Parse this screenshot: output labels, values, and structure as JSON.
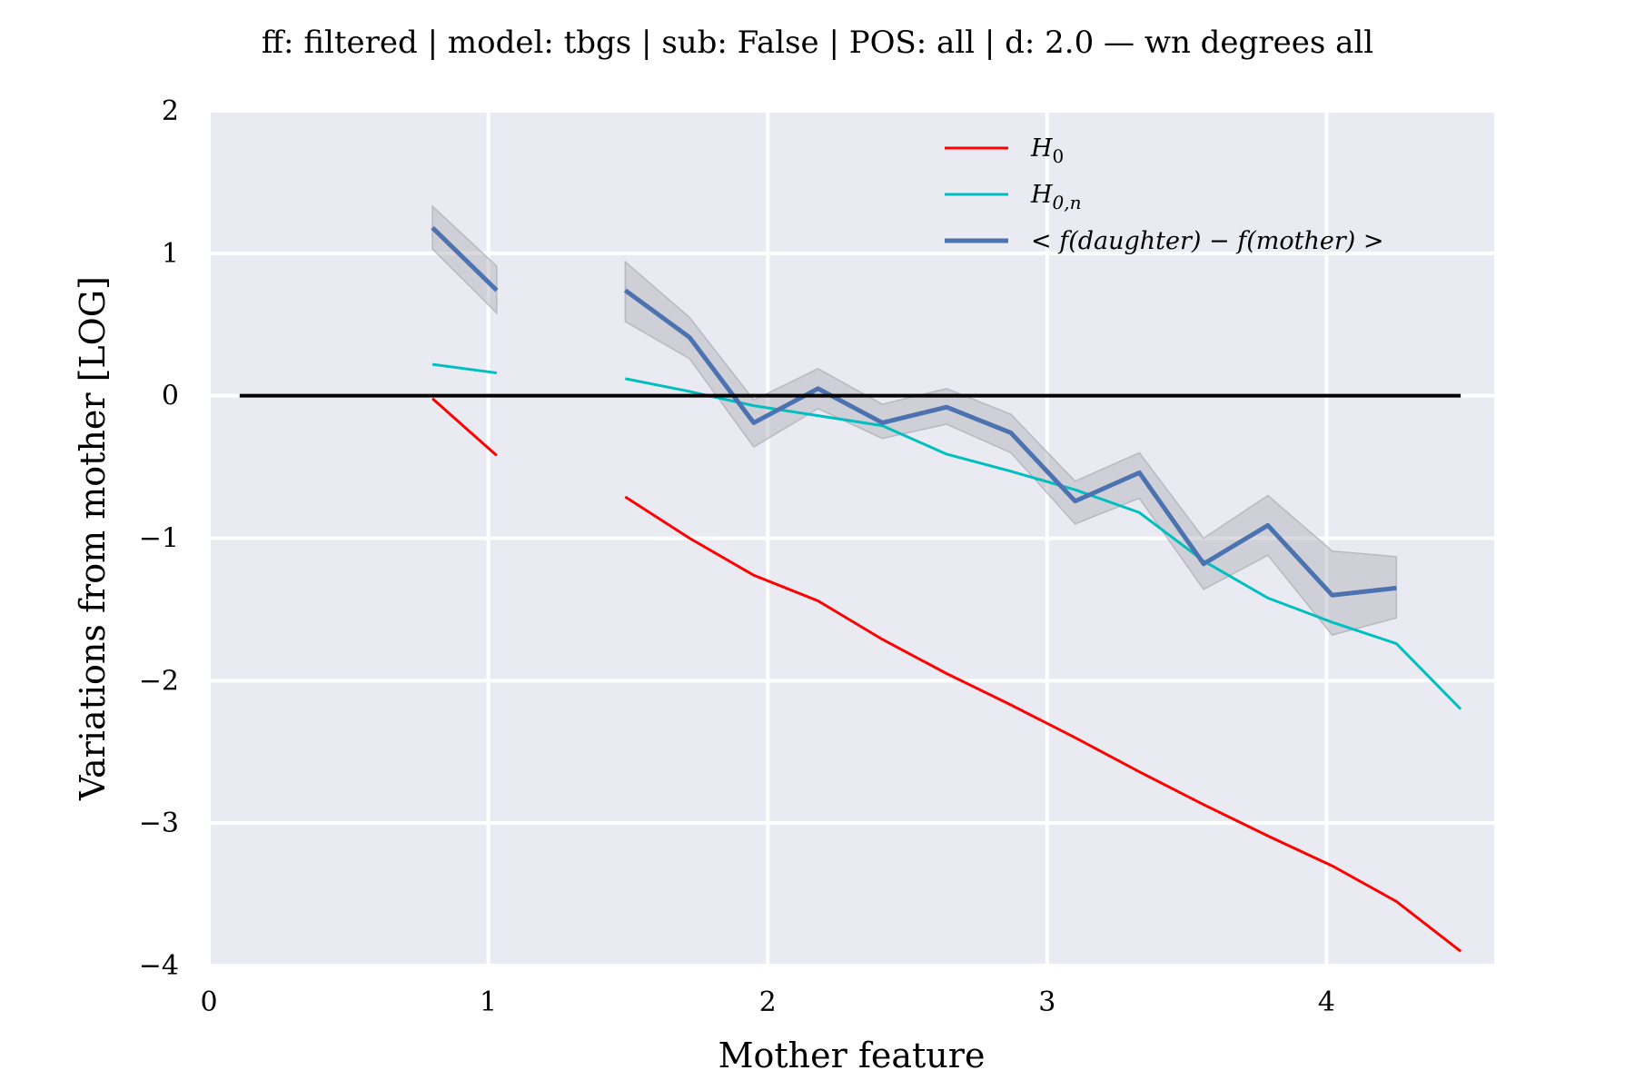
{
  "chart_data": {
    "type": "line",
    "title": "ff: filtered | model: tbgs | sub: False | POS: all | d: 2.0 — wn degrees all",
    "xlabel": "Mother feature",
    "ylabel": "Variations from mother [LOG]",
    "xlim": [
      0,
      4.6
    ],
    "ylim": [
      -4,
      2
    ],
    "xticks": [
      0,
      1,
      2,
      3,
      4
    ],
    "yticks": [
      -4,
      -3,
      -2,
      -1,
      0,
      1,
      2
    ],
    "xtick_labels": [
      "0",
      "1",
      "2",
      "3",
      "4"
    ],
    "ytick_labels": [
      "−4",
      "−3",
      "−2",
      "−1",
      "0",
      "1",
      "2"
    ],
    "grid": true,
    "legend_position": "top-right",
    "background": "#eaeaf2",
    "reference_line": {
      "y": 0,
      "x_from": 0.11,
      "x_to": 4.48,
      "color": "#000000"
    },
    "series": [
      {
        "name": "H_0",
        "legend_label": "H0",
        "color": "#ff0000",
        "width": 3,
        "segments": [
          {
            "x": [
              0.8,
              1.03
            ],
            "y": [
              -0.02,
              -0.42
            ]
          },
          {
            "x": [
              1.49,
              1.72,
              1.95,
              2.18,
              2.41,
              2.64,
              2.87,
              3.1,
              3.33,
              3.56,
              3.79,
              4.02,
              4.25,
              4.48
            ],
            "y": [
              -0.71,
              -1.0,
              -1.26,
              -1.44,
              -1.71,
              -1.95,
              -2.17,
              -2.4,
              -2.64,
              -2.87,
              -3.09,
              -3.3,
              -3.55,
              -3.9
            ]
          }
        ]
      },
      {
        "name": "H_{0,n}",
        "legend_label": "H0,n",
        "color": "#00bfbf",
        "width": 3,
        "segments": [
          {
            "x": [
              0.8,
              1.03
            ],
            "y": [
              0.22,
              0.16
            ]
          },
          {
            "x": [
              1.49,
              1.72,
              1.95,
              2.18,
              2.41,
              2.64,
              2.87,
              3.1,
              3.33,
              3.56,
              3.79,
              4.02,
              4.25,
              4.48
            ],
            "y": [
              0.12,
              0.03,
              -0.07,
              -0.14,
              -0.21,
              -0.41,
              -0.53,
              -0.66,
              -0.82,
              -1.16,
              -1.42,
              -1.59,
              -1.74,
              -2.2
            ]
          }
        ]
      },
      {
        "name": "< f(daughter) - f(mother) >",
        "legend_label": "< f(daughter) − f(mother) >",
        "color": "#4c72b0",
        "width": 5,
        "band_color": "#b0b0b8",
        "segments": [
          {
            "x": [
              0.8,
              1.03
            ],
            "y": [
              1.18,
              0.74
            ],
            "lower": [
              1.03,
              0.58
            ],
            "upper": [
              1.33,
              0.91
            ]
          },
          {
            "x": [
              1.49,
              1.72,
              1.95,
              2.18,
              2.41,
              2.64,
              2.87,
              3.1,
              3.33,
              3.56,
              3.79,
              4.02,
              4.25
            ],
            "y": [
              0.74,
              0.41,
              -0.19,
              0.05,
              -0.19,
              -0.08,
              -0.26,
              -0.74,
              -0.54,
              -1.18,
              -0.91,
              -1.4,
              -1.35
            ],
            "lower": [
              0.52,
              0.26,
              -0.36,
              -0.09,
              -0.3,
              -0.2,
              -0.4,
              -0.9,
              -0.72,
              -1.36,
              -1.12,
              -1.68,
              -1.56
            ],
            "upper": [
              0.94,
              0.55,
              -0.03,
              0.19,
              -0.06,
              0.05,
              -0.13,
              -0.6,
              -0.4,
              -1.0,
              -0.7,
              -1.09,
              -1.13
            ]
          }
        ]
      }
    ]
  }
}
